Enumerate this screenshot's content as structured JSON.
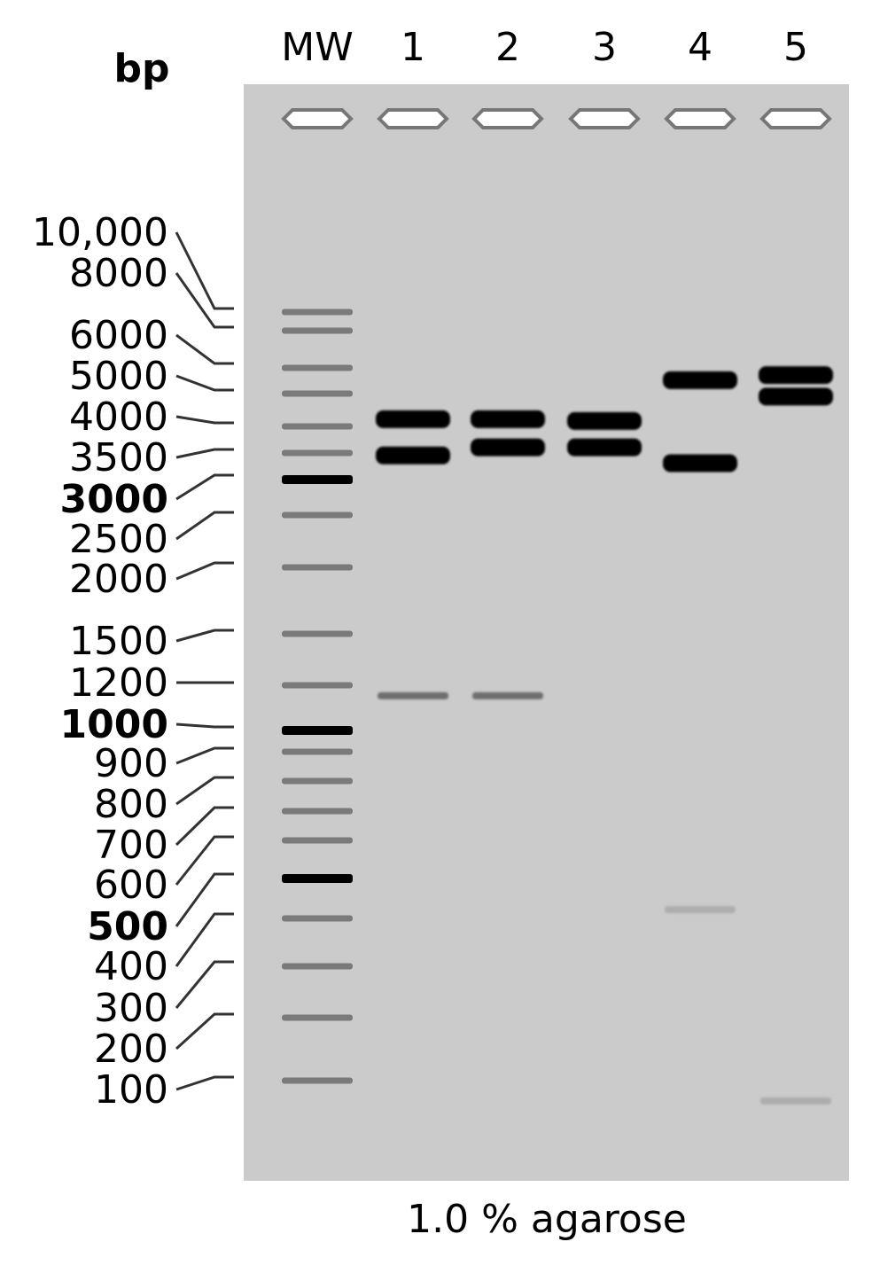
{
  "bp_header": "bp",
  "caption": "1.0 % agarose",
  "lane_labels": [
    "MW",
    "1",
    "2",
    "3",
    "4",
    "5"
  ],
  "ladder": [
    {
      "label": "10,000",
      "bp": 10000,
      "bold": false
    },
    {
      "label": "8000",
      "bp": 8000,
      "bold": false
    },
    {
      "label": "6000",
      "bp": 6000,
      "bold": false
    },
    {
      "label": "5000",
      "bp": 5000,
      "bold": false
    },
    {
      "label": "4000",
      "bp": 4000,
      "bold": false
    },
    {
      "label": "3500",
      "bp": 3500,
      "bold": false
    },
    {
      "label": "3000",
      "bp": 3000,
      "bold": true
    },
    {
      "label": "2500",
      "bp": 2500,
      "bold": false
    },
    {
      "label": "2000",
      "bp": 2000,
      "bold": false
    },
    {
      "label": "1500",
      "bp": 1500,
      "bold": false
    },
    {
      "label": "1200",
      "bp": 1200,
      "bold": false
    },
    {
      "label": "1000",
      "bp": 1000,
      "bold": true
    },
    {
      "label": "900",
      "bp": 900,
      "bold": false
    },
    {
      "label": "800",
      "bp": 800,
      "bold": false
    },
    {
      "label": "700",
      "bp": 700,
      "bold": false
    },
    {
      "label": "600",
      "bp": 600,
      "bold": false
    },
    {
      "label": "500",
      "bp": 500,
      "bold": true
    },
    {
      "label": "400",
      "bp": 400,
      "bold": false
    },
    {
      "label": "300",
      "bp": 300,
      "bold": false
    },
    {
      "label": "200",
      "bp": 200,
      "bold": false
    },
    {
      "label": "100",
      "bp": 100,
      "bold": false
    }
  ],
  "sample_bands": [
    {
      "lane": "1",
      "bp": 4200,
      "intensity": "strong"
    },
    {
      "lane": "1",
      "bp": 3450,
      "intensity": "strong"
    },
    {
      "lane": "1",
      "bp": 1150,
      "intensity": "faint"
    },
    {
      "lane": "2",
      "bp": 4200,
      "intensity": "strong"
    },
    {
      "lane": "2",
      "bp": 3600,
      "intensity": "strong"
    },
    {
      "lane": "2",
      "bp": 1150,
      "intensity": "faint"
    },
    {
      "lane": "3",
      "bp": 4150,
      "intensity": "strong"
    },
    {
      "lane": "3",
      "bp": 3600,
      "intensity": "strong"
    },
    {
      "lane": "4",
      "bp": 5500,
      "intensity": "strong"
    },
    {
      "lane": "4",
      "bp": 3300,
      "intensity": "strong"
    },
    {
      "lane": "4",
      "bp": 420,
      "intensity": "very-faint"
    },
    {
      "lane": "5",
      "bp": 5700,
      "intensity": "strong"
    },
    {
      "lane": "5",
      "bp": 4900,
      "intensity": "strong"
    },
    {
      "lane": "5",
      "bp": 80,
      "intensity": "very-faint"
    }
  ],
  "colors": {
    "gel": "#cbcbcb",
    "band_strong": "#000000",
    "band_faint": "#6e6e6e",
    "band_very_faint": "#adadad",
    "ladder_band": "#7a7a7a",
    "ladder_band_bold": "#000000",
    "text": "#000000",
    "well_fill": "#ffffff",
    "well_stroke": "#777777"
  }
}
